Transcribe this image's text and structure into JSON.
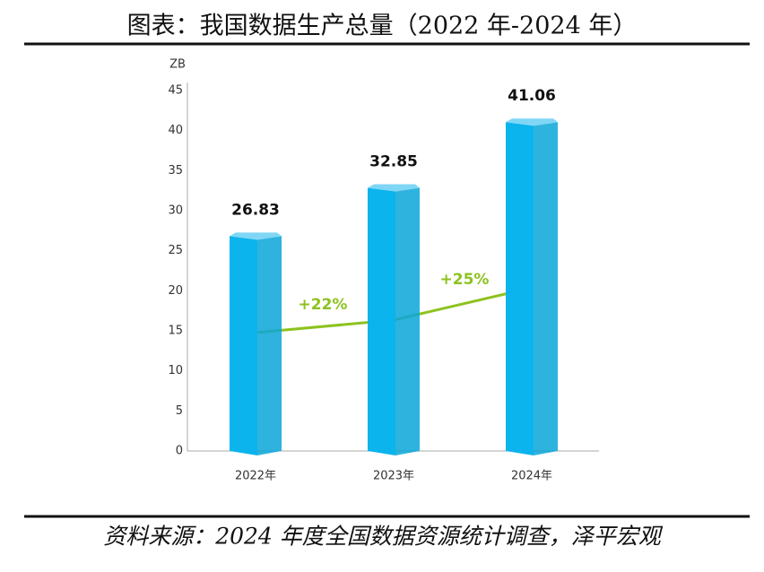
{
  "chart_data": {
    "type": "bar",
    "title": "图表：我国数据生产总量（2022 年-2024 年）",
    "y_unit": "ZB",
    "categories": [
      "2022年",
      "2023年",
      "2024年"
    ],
    "values": [
      26.83,
      32.85,
      41.06
    ],
    "color": "#0bb4ec",
    "ylim": [
      0,
      45
    ],
    "yticks": [
      0,
      5,
      10,
      15,
      20,
      25,
      30,
      35,
      40,
      45
    ],
    "annotations": [
      "+22%",
      "+25%"
    ],
    "annotation_color": "#8dc21f",
    "source": "资料来源：2024 年度全国数据资源统计调查，泽平宏观"
  }
}
